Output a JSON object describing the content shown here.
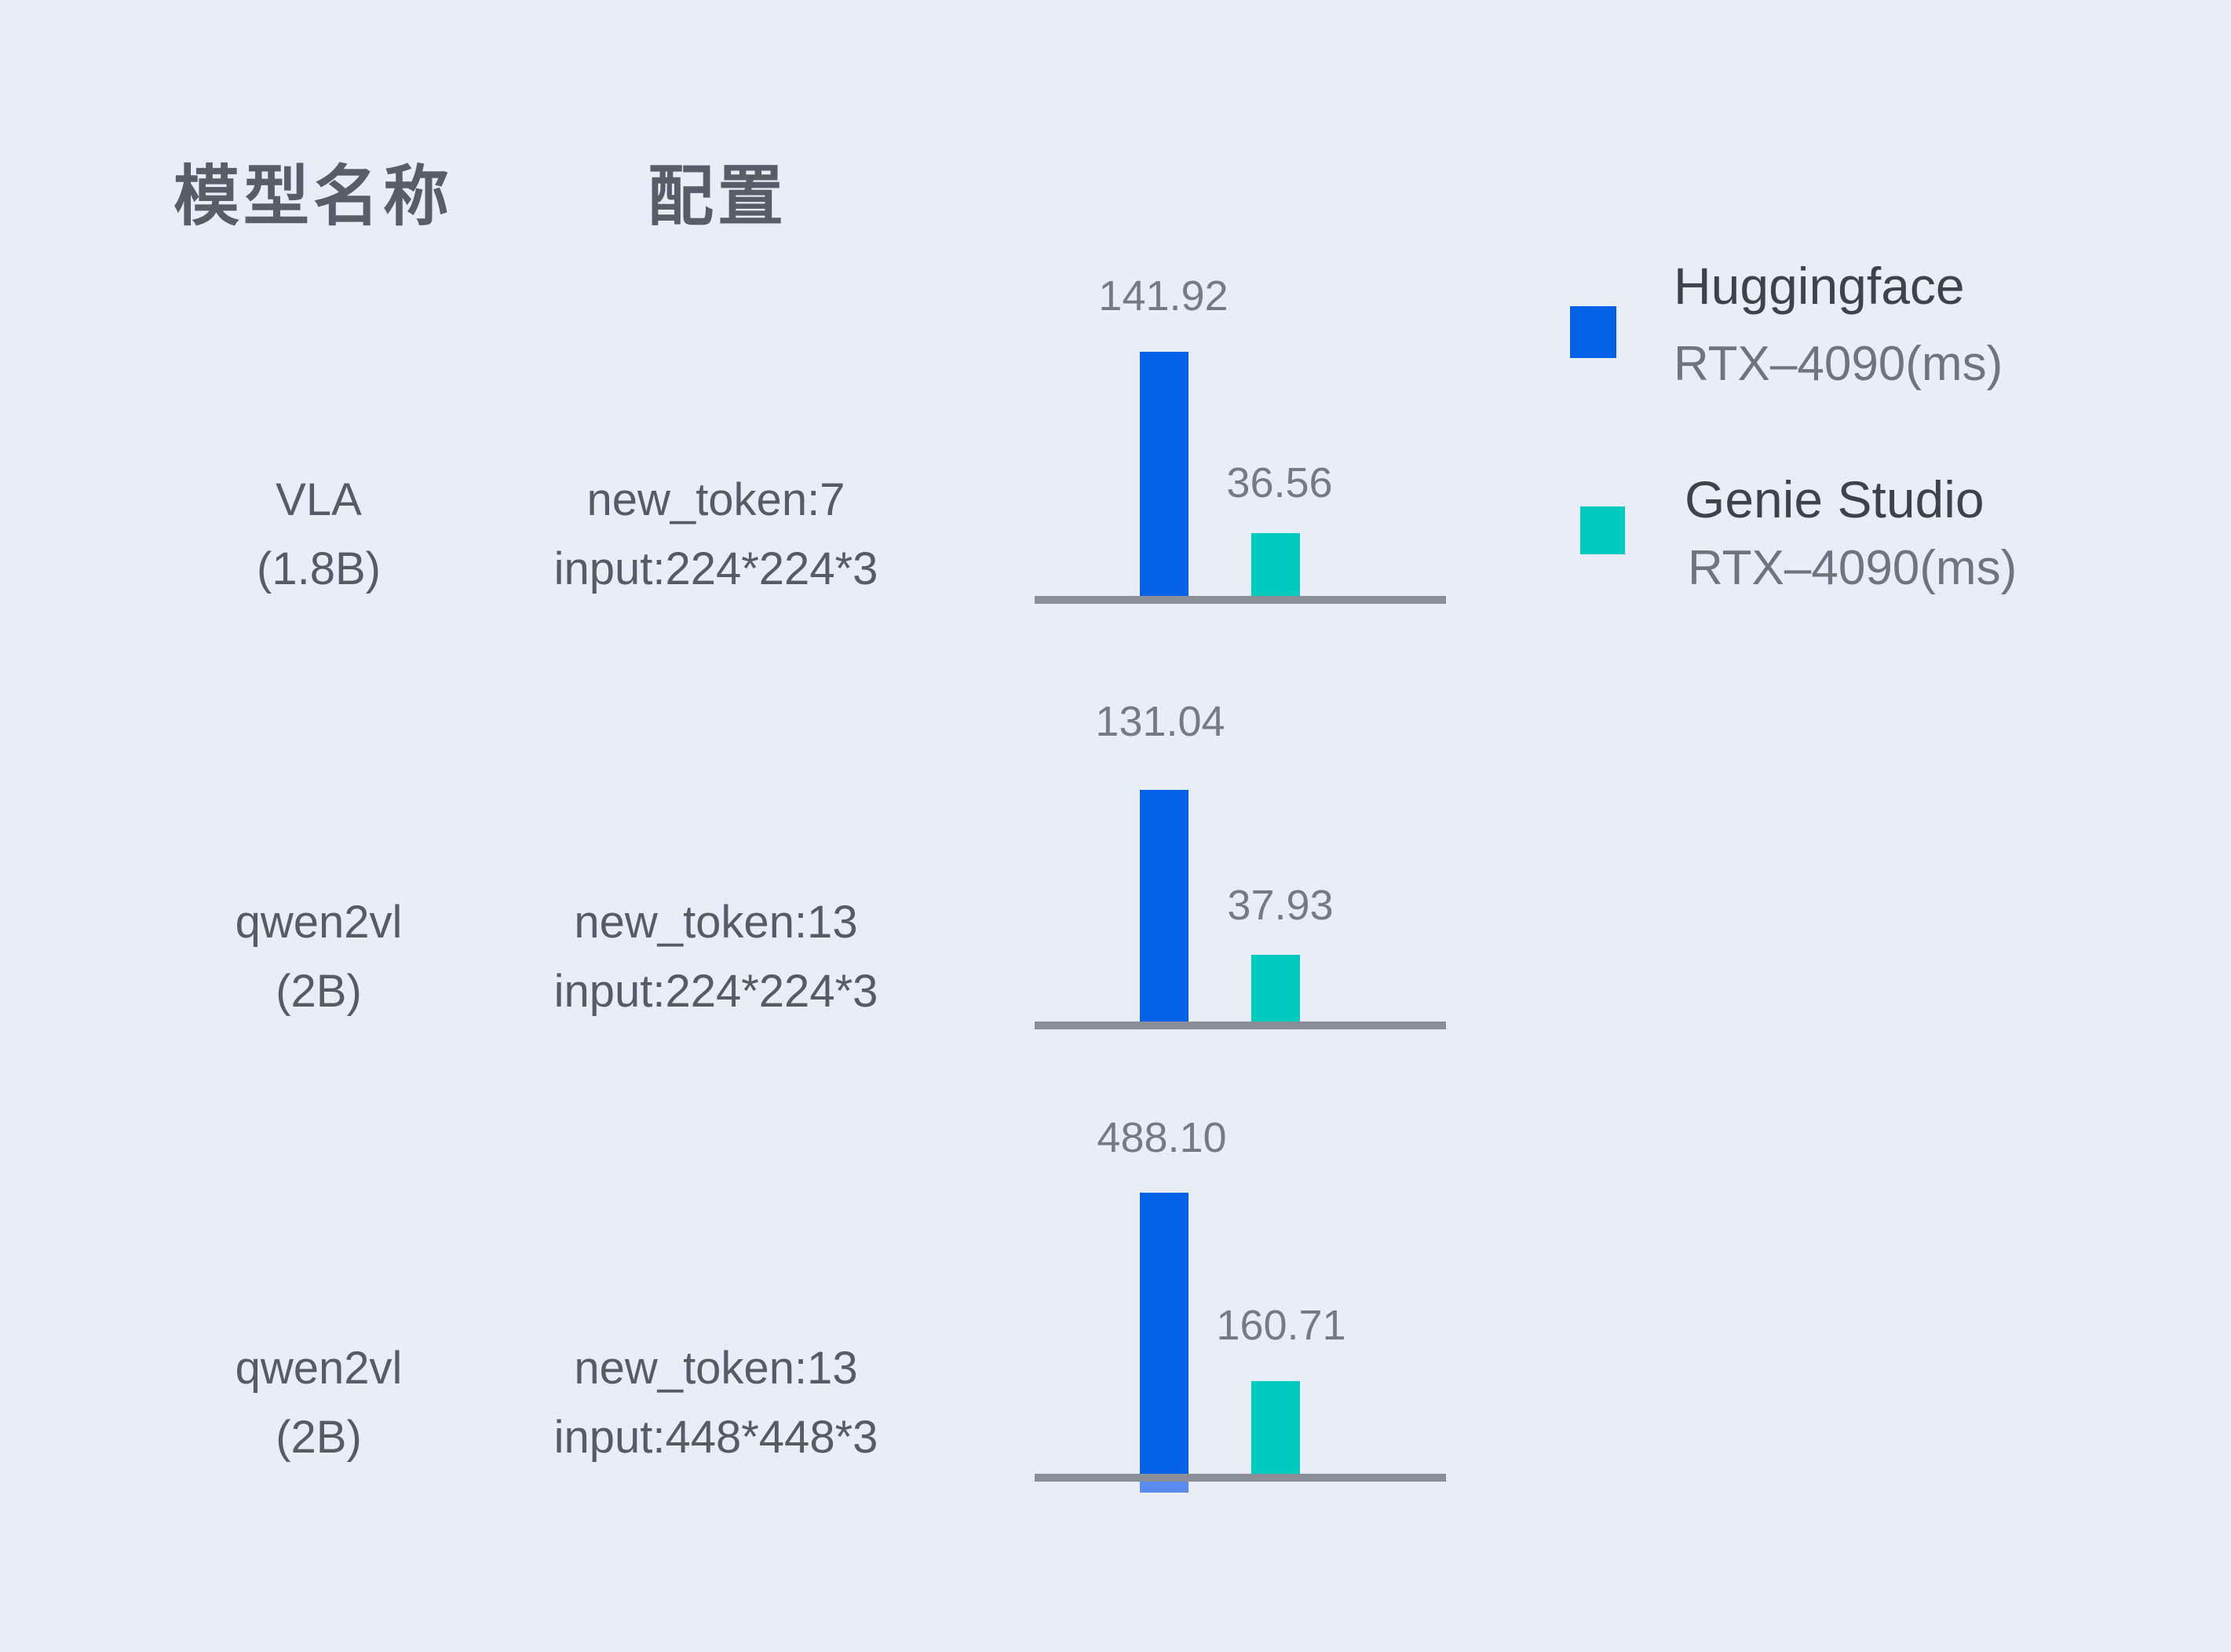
{
  "page": {
    "background": "#E8EDF8"
  },
  "header": {
    "model_col": "模型名称",
    "config_col": "配置"
  },
  "legend": {
    "entries": [
      {
        "name": "Huggingface",
        "device": "RTX–4090(ms)",
        "color": "#0561E8"
      },
      {
        "name": "Genie Studio",
        "device": "RTX–4090(ms)",
        "color": "#00CBBE"
      }
    ]
  },
  "rows": [
    {
      "model_line1": "VLA",
      "model_line2": "(1.8B)",
      "config_line1": "new_token:7",
      "config_line2": "input:224*224*3",
      "hf_label": "141.92",
      "gs_label": "36.56"
    },
    {
      "model_line1": "qwen2vl",
      "model_line2": "(2B)",
      "config_line1": "new_token:13",
      "config_line2": "input:224*224*3",
      "hf_label": "131.04",
      "gs_label": "37.93"
    },
    {
      "model_line1": "qwen2vl",
      "model_line2": "(2B)",
      "config_line1": "new_token:13",
      "config_line2": "input:448*448*3",
      "hf_label": "488.10",
      "gs_label": "160.71"
    }
  ],
  "chart_data": {
    "type": "bar",
    "unit": "ms",
    "title": "",
    "series": [
      {
        "name": "Huggingface RTX–4090(ms)",
        "color": "#0561E8"
      },
      {
        "name": "Genie Studio RTX–4090(ms)",
        "color": "#00CBBE"
      }
    ],
    "categories": [
      "VLA (1.8B) — new_token:7 input:224*224*3",
      "qwen2vl (2B) — new_token:13 input:224*224*3",
      "qwen2vl (2B) — new_token:13 input:448*448*3"
    ],
    "values": {
      "huggingface": [
        141.92,
        131.04,
        488.1
      ],
      "genie_studio": [
        36.56,
        37.93,
        160.71
      ]
    },
    "baseline_color": "#8A8E99",
    "value_label_color": "#767A83",
    "legend_position": "top-right",
    "grid": false,
    "layout": "three independent mini bar charts, each scaled to its own row maximum"
  }
}
